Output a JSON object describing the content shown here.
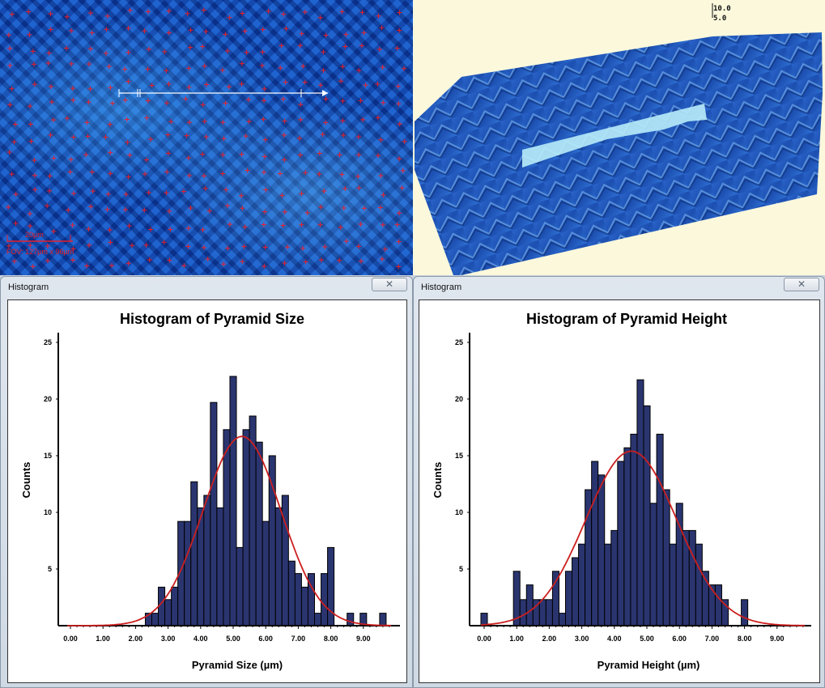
{
  "micrograph": {
    "scale_bar_label": "20µm",
    "fov_label": "FOV: 127µm x 96µm",
    "marker_color": "#e8202a"
  },
  "view3d": {
    "z_labels": [
      "10.0",
      "5.0"
    ],
    "background": "#fbf8dc"
  },
  "windows": [
    {
      "title": "Histogram",
      "close_icon": "close-icon"
    },
    {
      "title": "Histogram",
      "close_icon": "close-icon"
    }
  ],
  "colors": {
    "bar": "#2a3570",
    "fit": "#cc1f1f"
  },
  "chart_data": [
    {
      "type": "bar",
      "title": "Histogram of Pyramid Size",
      "xlabel": "Pyramid Size (µm)",
      "ylabel": "Counts",
      "xlim": [
        0,
        10
      ],
      "ylim": [
        0,
        25
      ],
      "xticks": [
        "0.00",
        "1.00",
        "2.00",
        "3.00",
        "4.00",
        "5.00",
        "6.00",
        "7.00",
        "8.00",
        "9.00"
      ],
      "yticks": [
        "5",
        "10",
        "15",
        "20",
        "25"
      ],
      "bin_width": 0.2,
      "bin_start": [
        2.3,
        2.5,
        2.7,
        2.9,
        3.1,
        3.3,
        3.5,
        3.7,
        3.9,
        4.1,
        4.3,
        4.5,
        4.7,
        4.9,
        5.1,
        5.3,
        5.5,
        5.7,
        5.9,
        6.1,
        6.3,
        6.5,
        6.7,
        6.9,
        7.1,
        7.3,
        7.5,
        7.7,
        7.9,
        8.1,
        8.3,
        8.5,
        8.7,
        8.9,
        9.1,
        9.3,
        9.5
      ],
      "counts": [
        1.1,
        1.1,
        3.4,
        2.3,
        3.4,
        9.2,
        9.2,
        12.7,
        10.4,
        11.5,
        19.7,
        10.4,
        17.3,
        22.0,
        6.9,
        17.3,
        18.5,
        16.2,
        9.2,
        15.0,
        10.4,
        11.5,
        5.7,
        4.6,
        3.4,
        4.6,
        1.1,
        4.6,
        6.9,
        0,
        0,
        1.1,
        0,
        1.1,
        0,
        0,
        1.1
      ],
      "fit": {
        "type": "normal",
        "mean": 5.27,
        "sd": 1.2,
        "peak": 16.7
      },
      "grid": false,
      "legend": "none"
    },
    {
      "type": "bar",
      "title": "Histogram of Pyramid Height",
      "xlabel": "Pyramid Height (µm)",
      "ylabel": "Counts",
      "xlim": [
        0,
        10
      ],
      "ylim": [
        0,
        25
      ],
      "xticks": [
        "0.00",
        "1.00",
        "2.00",
        "3.00",
        "4.00",
        "5.00",
        "6.00",
        "7.00",
        "8.00",
        "9.00"
      ],
      "yticks": [
        "5",
        "10",
        "15",
        "20",
        "25"
      ],
      "bin_width": 0.2,
      "bin_start": [
        -0.1,
        0.1,
        0.3,
        0.5,
        0.7,
        0.9,
        1.1,
        1.3,
        1.5,
        1.7,
        1.9,
        2.1,
        2.3,
        2.5,
        2.7,
        2.9,
        3.1,
        3.3,
        3.5,
        3.7,
        3.9,
        4.1,
        4.3,
        4.5,
        4.7,
        4.9,
        5.1,
        5.3,
        5.5,
        5.7,
        5.9,
        6.1,
        6.3,
        6.5,
        6.7,
        6.9,
        7.1,
        7.3,
        7.5,
        7.7,
        7.9
      ],
      "counts": [
        1.1,
        0,
        0,
        0,
        0,
        4.8,
        2.3,
        3.6,
        2.3,
        2.3,
        2.3,
        4.8,
        1.1,
        4.8,
        6.0,
        7.2,
        12.0,
        14.5,
        13.3,
        7.2,
        8.4,
        14.5,
        15.7,
        16.9,
        21.7,
        19.4,
        10.8,
        16.9,
        12.0,
        7.2,
        10.8,
        8.4,
        8.4,
        7.2,
        4.8,
        3.6,
        3.6,
        2.3,
        0,
        0,
        2.3
      ],
      "fit": {
        "type": "normal",
        "mean": 4.52,
        "sd": 1.4,
        "peak": 15.4
      },
      "grid": false,
      "legend": "none"
    }
  ]
}
